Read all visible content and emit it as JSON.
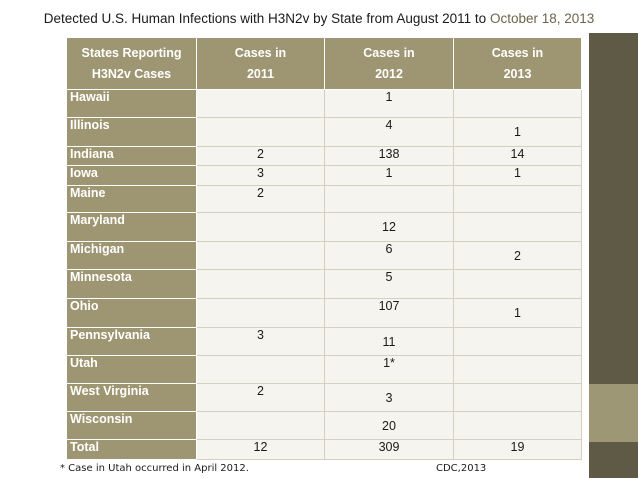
{
  "title": {
    "main": "Detected U.S. Human Infections with H3N2v by State from August 2011 to",
    "date": "October 18, 2013"
  },
  "colors": {
    "header_bg": "#9e9672",
    "cell_bg": "#f5f4ee",
    "strip": "#5f5a45",
    "strip_accent": "#9e9776"
  },
  "table": {
    "headers": {
      "states": [
        "States Reporting",
        "H3N2v Cases"
      ],
      "y2011": [
        "Cases in",
        "2011"
      ],
      "y2012": [
        "Cases in",
        "2012"
      ],
      "y2013": [
        "Cases in",
        "2013"
      ]
    },
    "rows": [
      {
        "state": "Hawaii",
        "c2011": "",
        "c2012": "1",
        "c2013": ""
      },
      {
        "state": "Illinois",
        "c2011": "",
        "c2012": "4",
        "c2013": "1"
      },
      {
        "state": "Indiana",
        "c2011": "2",
        "c2012": "138",
        "c2013": "14"
      },
      {
        "state": "Iowa",
        "c2011": "3",
        "c2012": "1",
        "c2013": "1"
      },
      {
        "state": "Maine",
        "c2011": "2",
        "c2012": "",
        "c2013": ""
      },
      {
        "state": "Maryland",
        "c2011": "",
        "c2012": "12",
        "c2013": ""
      },
      {
        "state": "Michigan",
        "c2011": "",
        "c2012": "6",
        "c2013": "2"
      },
      {
        "state": "Minnesota",
        "c2011": "",
        "c2012": "5",
        "c2013": ""
      },
      {
        "state": "Ohio",
        "c2011": "",
        "c2012": "107",
        "c2013": "1"
      },
      {
        "state": "Pennsylvania",
        "c2011": "3",
        "c2012": "11",
        "c2013": ""
      },
      {
        "state": "Utah",
        "c2011": "",
        "c2012": "1*",
        "c2013": ""
      },
      {
        "state": "West Virginia",
        "c2011": "2",
        "c2012": "3",
        "c2013": ""
      },
      {
        "state": "Wisconsin",
        "c2011": "",
        "c2012": "20",
        "c2013": ""
      }
    ],
    "total": {
      "label": "Total",
      "c2011": "12",
      "c2012": "309",
      "c2013": "19"
    }
  },
  "footnote": "* Case in Utah occurred in April 2012.",
  "source": "CDC,2013"
}
